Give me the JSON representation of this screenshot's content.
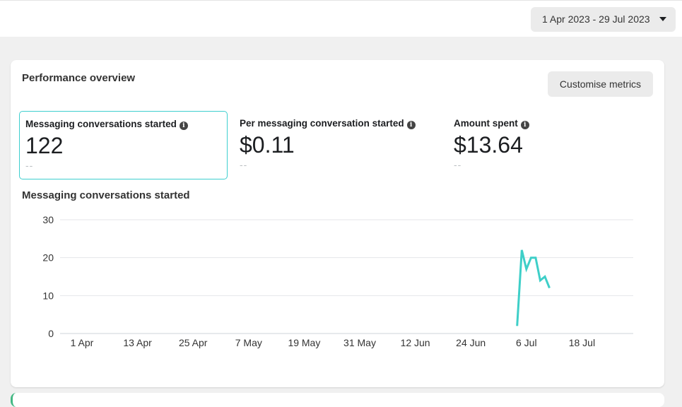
{
  "date_range": {
    "label": "1 Apr 2023 - 29 Jul 2023",
    "icon": "caret-down-icon"
  },
  "card": {
    "title": "Performance overview",
    "customise_label": "Customise metrics"
  },
  "metrics": [
    {
      "label": "Messaging conversations started",
      "value": "122",
      "compare": "--",
      "icon": "info-icon",
      "selected": true
    },
    {
      "label": "Per messaging conversation started",
      "value": "$0.11",
      "compare": "--",
      "icon": "info-icon",
      "selected": false
    },
    {
      "label": "Amount spent",
      "value": "$13.64",
      "compare": "--",
      "icon": "info-icon",
      "selected": false
    }
  ],
  "chart_title": "Messaging conversations started",
  "chart_data": {
    "type": "line",
    "title": "Messaging conversations started",
    "xlabel": "",
    "ylabel": "",
    "ylim": [
      0,
      30
    ],
    "yticks": [
      0,
      10,
      20,
      30
    ],
    "x_tick_labels": [
      "1 Apr",
      "13 Apr",
      "25 Apr",
      "7 May",
      "19 May",
      "31 May",
      "12 Jun",
      "24 Jun",
      "6 Jul",
      "18 Jul"
    ],
    "grid": true,
    "color": "#3ecfc8",
    "series": [
      {
        "x": [
          "2023-07-04",
          "2023-07-05",
          "2023-07-06",
          "2023-07-07",
          "2023-07-08",
          "2023-07-09",
          "2023-07-10",
          "2023-07-11"
        ],
        "values": [
          2,
          22,
          17,
          20,
          20,
          14,
          15,
          12
        ]
      }
    ]
  }
}
